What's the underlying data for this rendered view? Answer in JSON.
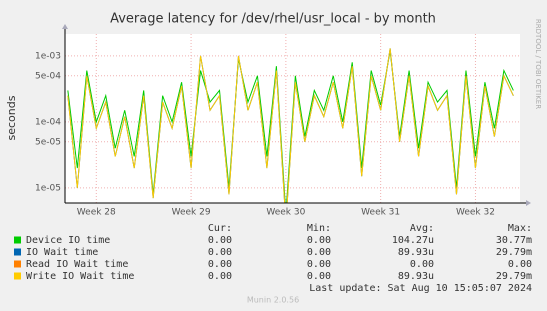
{
  "chart_data": {
    "type": "line",
    "title": "Average latency for /dev/rhel/usr_local - by month",
    "y_label": "seconds",
    "side_text": "RRDTOOL / TOBI OETIKER",
    "log_scale": true,
    "grid": true,
    "ylim": [
      5.9e-06,
      0.00215
    ],
    "yticks": [
      {
        "value": 1e-05,
        "label": "1e-05"
      },
      {
        "value": 5e-05,
        "label": "5e-05"
      },
      {
        "value": 0.0001,
        "label": "1e-04"
      },
      {
        "value": 0.0005,
        "label": "5e-04"
      },
      {
        "value": 0.001,
        "label": "1e-03"
      }
    ],
    "xlim": [
      27.67,
      32.47
    ],
    "xticks": [
      {
        "value": 28,
        "label": "Week 28"
      },
      {
        "value": 29,
        "label": "Week 29"
      },
      {
        "value": 30,
        "label": "Week 30"
      },
      {
        "value": 31,
        "label": "Week 31"
      },
      {
        "value": 32,
        "label": "Week 32"
      }
    ],
    "x": [
      27.7,
      27.8,
      27.9,
      28.0,
      28.1,
      28.2,
      28.3,
      28.4,
      28.5,
      28.6,
      28.7,
      28.8,
      28.9,
      29.0,
      29.1,
      29.2,
      29.3,
      29.4,
      29.5,
      29.6,
      29.7,
      29.8,
      29.9,
      30.0,
      30.1,
      30.2,
      30.3,
      30.4,
      30.5,
      30.6,
      30.7,
      30.8,
      30.9,
      31.0,
      31.1,
      31.2,
      31.3,
      31.4,
      31.5,
      31.6,
      31.7,
      31.8,
      31.9,
      32.0,
      32.1,
      32.2,
      32.3,
      32.4
    ],
    "legend_columns": [
      "Cur:",
      "Min:",
      "Avg:",
      "Max:"
    ],
    "series": [
      {
        "name": "Device IO time",
        "color": "#00cc00",
        "cur": "0.00",
        "min": "0.00",
        "avg": "104.27u",
        "max": "30.77m",
        "values": [
          0.0003,
          2e-05,
          0.0006,
          0.0001,
          0.00025,
          4e-05,
          0.00015,
          3e-05,
          0.0003,
          8e-06,
          0.00025,
          0.0001,
          0.0004,
          3e-05,
          0.0006,
          0.0002,
          0.0003,
          1e-05,
          0.0009,
          0.0002,
          0.0005,
          3e-05,
          0.0007,
          4e-06,
          0.0005,
          6e-05,
          0.0003,
          0.00015,
          0.0005,
          0.0001,
          0.0008,
          2e-05,
          0.0006,
          0.00018,
          0.0012,
          6e-05,
          0.0006,
          4e-05,
          0.0004,
          0.0002,
          0.0003,
          1e-05,
          0.0006,
          3e-05,
          0.0004,
          8e-05,
          0.0006,
          0.0003
        ]
      },
      {
        "name": "IO Wait time",
        "color": "#0066b3",
        "cur": "0.00",
        "min": "0.00",
        "avg": "89.93u",
        "max": "29.79m",
        "values": [
          0.00025,
          1e-05,
          0.0005,
          8e-05,
          0.0002,
          3e-05,
          0.00012,
          2e-05,
          0.00025,
          7e-06,
          0.0002,
          8e-05,
          0.00035,
          2e-05,
          0.001,
          0.00015,
          0.00025,
          8e-06,
          0.001,
          0.00015,
          0.0004,
          2e-05,
          0.0006,
          3e-06,
          0.0004,
          5e-05,
          0.00025,
          0.00012,
          0.0004,
          8e-05,
          0.0007,
          1.5e-05,
          0.0005,
          0.00015,
          0.0013,
          5e-05,
          0.0005,
          3e-05,
          0.00035,
          0.00015,
          0.00025,
          8e-06,
          0.0005,
          2e-05,
          0.00035,
          6e-05,
          0.0005,
          0.00025
        ]
      },
      {
        "name": "Read IO Wait time",
        "color": "#ff8000",
        "cur": "0.00",
        "min": "0.00",
        "avg": "0.00",
        "max": "0.00",
        "values": [
          null,
          null,
          null,
          null,
          null,
          null,
          null,
          null,
          null,
          null,
          null,
          null,
          null,
          null,
          null,
          null,
          null,
          null,
          null,
          null,
          null,
          null,
          null,
          null,
          null,
          null,
          null,
          null,
          null,
          null,
          null,
          null,
          null,
          null,
          null,
          null,
          null,
          null,
          null,
          null,
          null,
          null,
          null,
          null,
          null,
          null,
          null,
          null
        ]
      },
      {
        "name": "Write IO Wait time",
        "color": "#ffcc00",
        "cur": "0.00",
        "min": "0.00",
        "avg": "89.93u",
        "max": "29.79m",
        "values": [
          0.00025,
          1e-05,
          0.0005,
          8e-05,
          0.0002,
          3e-05,
          0.00012,
          2e-05,
          0.00025,
          7e-06,
          0.0002,
          8e-05,
          0.00035,
          2e-05,
          0.001,
          0.00015,
          0.00025,
          8e-06,
          0.001,
          0.00015,
          0.0004,
          2e-05,
          0.0006,
          3e-06,
          0.0004,
          5e-05,
          0.00025,
          0.00012,
          0.0004,
          8e-05,
          0.0007,
          1.5e-05,
          0.0005,
          0.00015,
          0.0013,
          5e-05,
          0.0005,
          3e-05,
          0.00035,
          0.00015,
          0.00025,
          8e-06,
          0.0005,
          2e-05,
          0.00035,
          6e-05,
          0.0005,
          0.00025
        ]
      }
    ],
    "last_update": "Last update: Sat Aug 10 15:05:07 2024",
    "footer": "Munin 2.0.56"
  }
}
